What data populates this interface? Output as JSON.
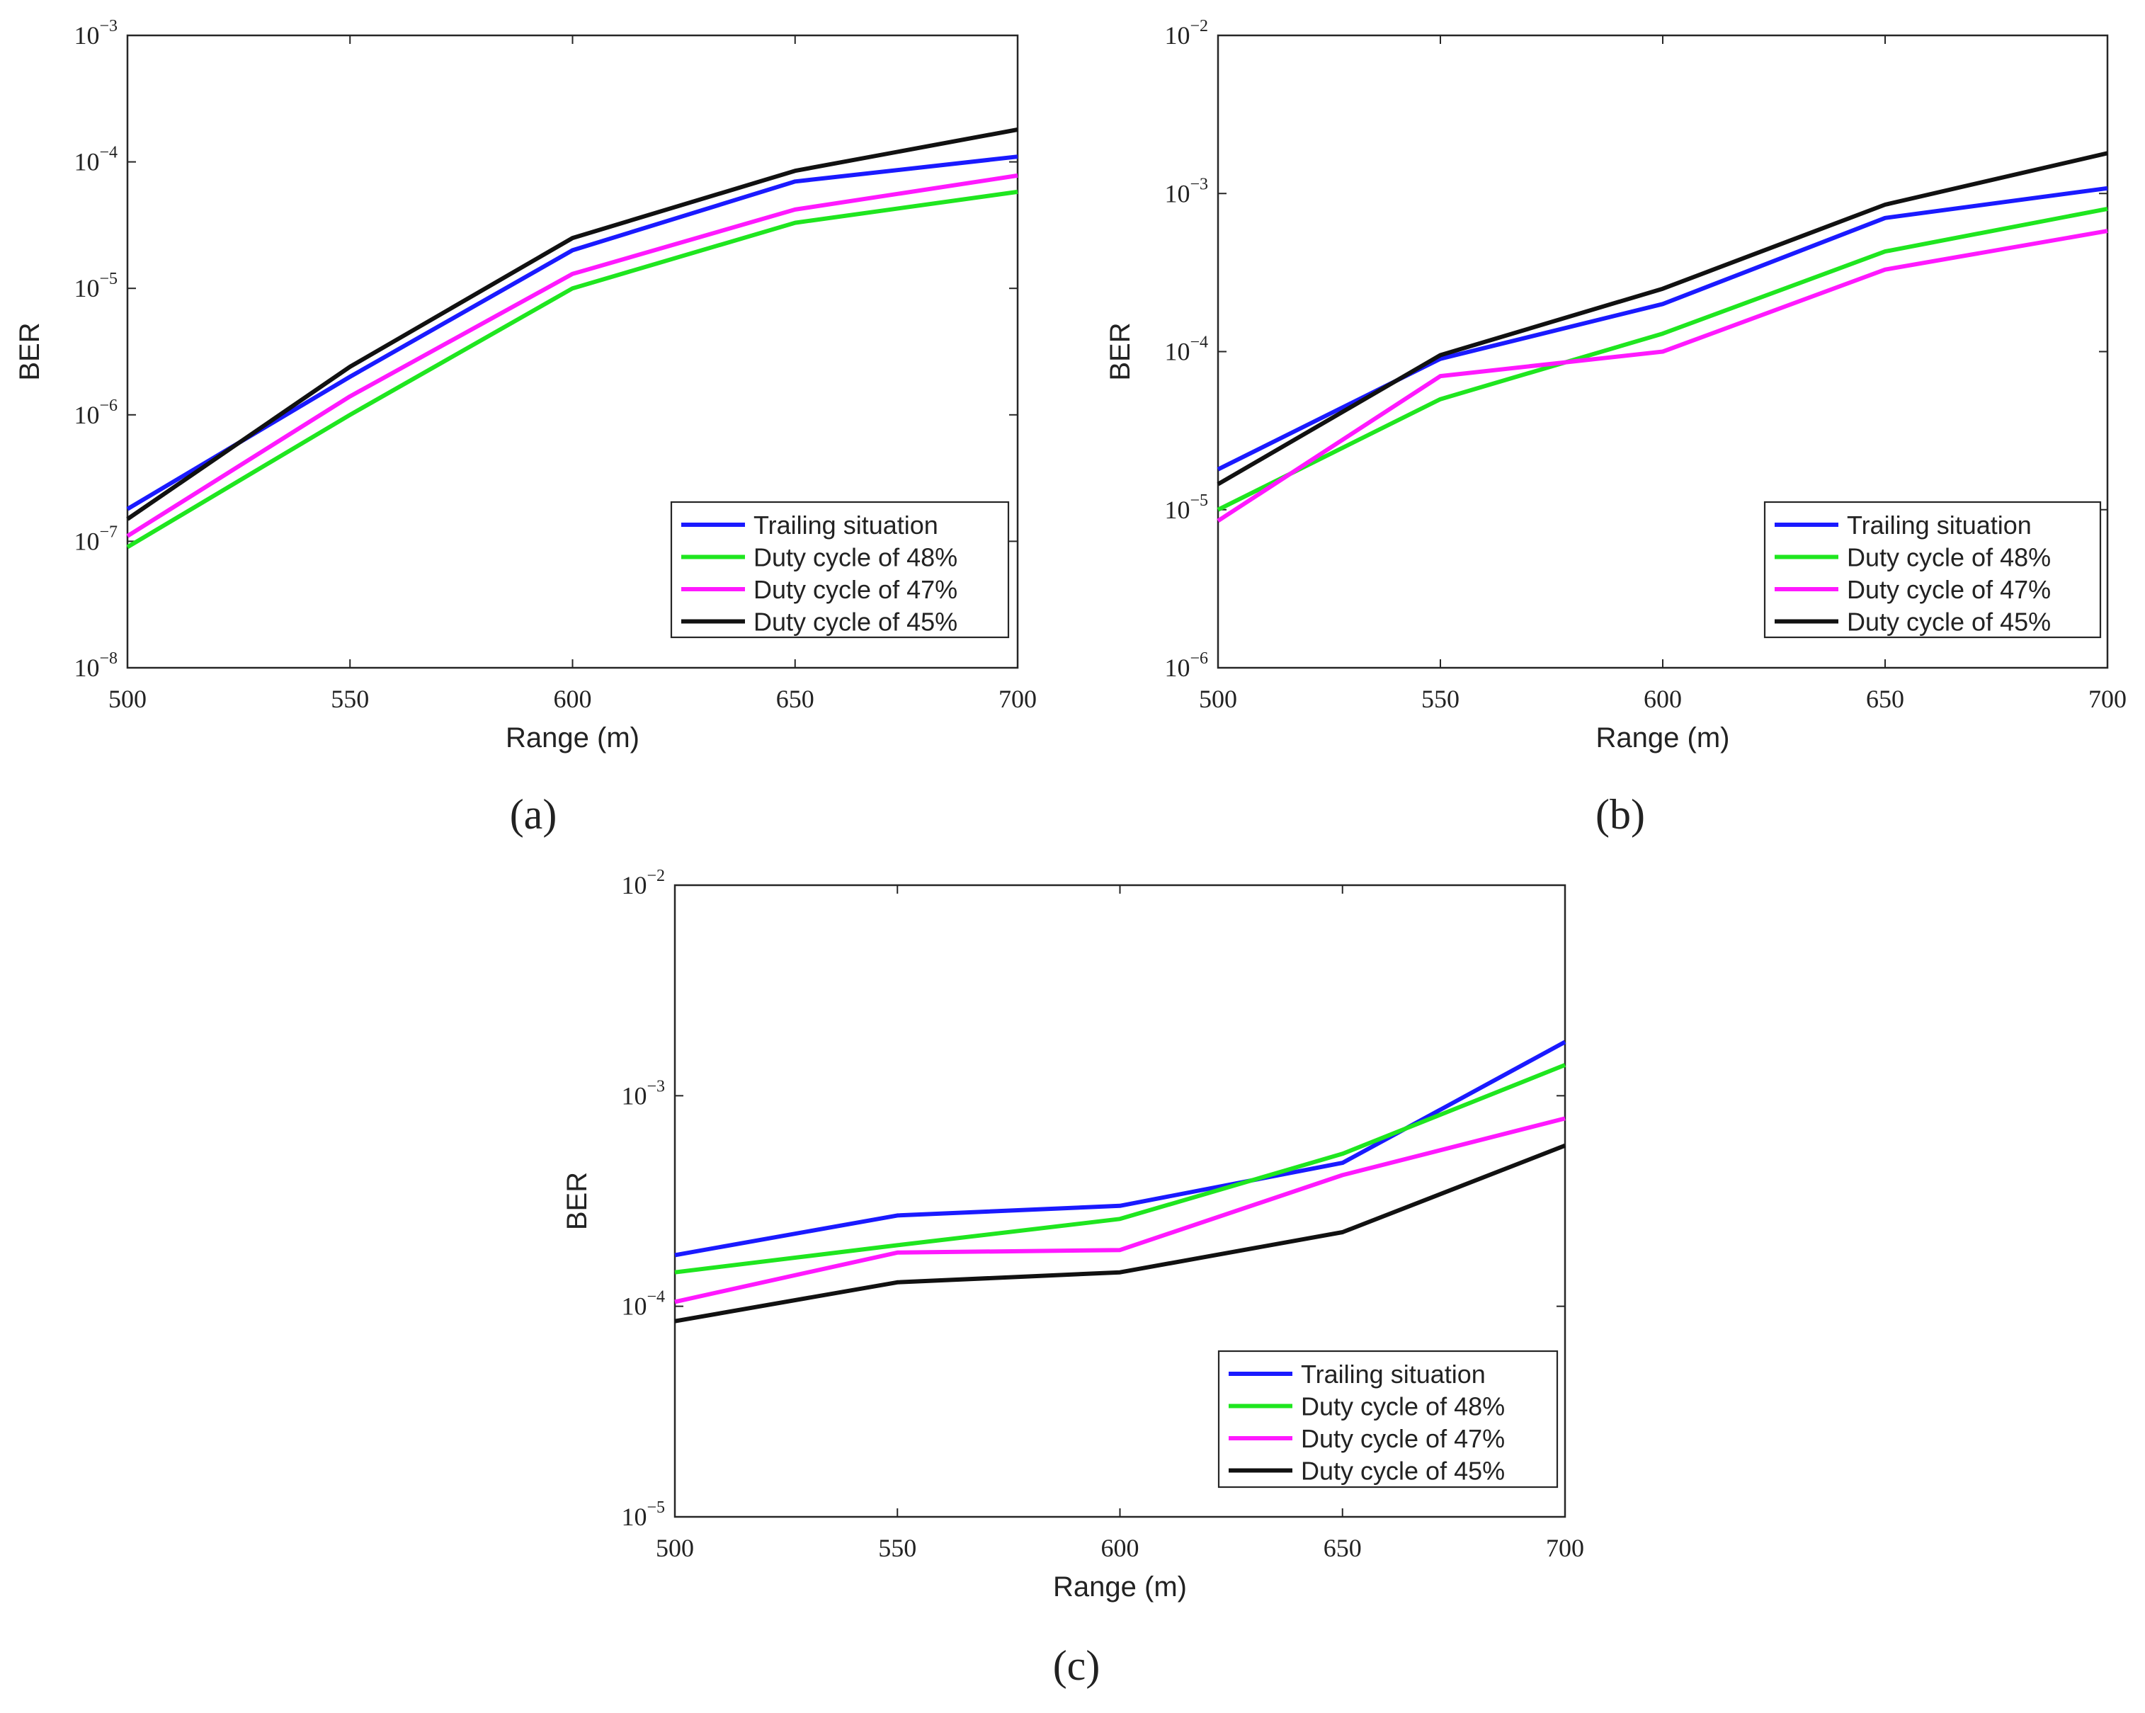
{
  "figure": {
    "series_names": [
      "Trailing situation",
      "Duty cycle of 48%",
      "Duty cycle of 47%",
      "Duty cycle of 45%"
    ],
    "colors": [
      "#1a1aff",
      "#1fe61f",
      "#ff19ff",
      "#111111"
    ]
  },
  "chart_data": [
    {
      "type": "line",
      "caption": "(a)",
      "title": "",
      "xlabel": "Range (m)",
      "ylabel": "BER",
      "yscale": "log",
      "xlim": [
        500,
        700
      ],
      "ylim": [
        1e-08,
        0.001
      ],
      "x": [
        500,
        550,
        600,
        650,
        700
      ],
      "xtick_labels": [
        "500",
        "550",
        "600",
        "650",
        "700"
      ],
      "ytick_exponents": [
        "-8",
        "-7",
        "-6",
        "-5",
        "-4",
        "-3"
      ],
      "legend_position": "bottom-right",
      "series": [
        {
          "name": "Trailing situation",
          "color": "#1a1aff",
          "values": [
            1.8e-07,
            2e-06,
            2e-05,
            7e-05,
            0.00011
          ]
        },
        {
          "name": "Duty cycle of 48%",
          "color": "#1fe61f",
          "values": [
            9e-08,
            1e-06,
            1e-05,
            3.3e-05,
            5.8e-05
          ]
        },
        {
          "name": "Duty cycle of 47%",
          "color": "#ff19ff",
          "values": [
            1.1e-07,
            1.4e-06,
            1.3e-05,
            4.2e-05,
            7.8e-05
          ]
        },
        {
          "name": "Duty cycle of 45%",
          "color": "#111111",
          "values": [
            1.5e-07,
            2.4e-06,
            2.5e-05,
            8.5e-05,
            0.00018
          ]
        }
      ]
    },
    {
      "type": "line",
      "caption": "(b)",
      "title": "",
      "xlabel": "Range (m)",
      "ylabel": "BER",
      "yscale": "log",
      "xlim": [
        500,
        700
      ],
      "ylim": [
        1e-06,
        0.01
      ],
      "x": [
        500,
        550,
        600,
        650,
        700
      ],
      "xtick_labels": [
        "500",
        "550",
        "600",
        "650",
        "700"
      ],
      "ytick_exponents": [
        "-6",
        "-5",
        "-4",
        "-3",
        "-2"
      ],
      "legend_position": "bottom-right",
      "series": [
        {
          "name": "Trailing situation",
          "color": "#1a1aff",
          "values": [
            1.8e-05,
            9e-05,
            0.0002,
            0.0007,
            0.00108
          ]
        },
        {
          "name": "Duty cycle of 48%",
          "color": "#1fe61f",
          "values": [
            1e-05,
            5e-05,
            0.00013,
            0.00043,
            0.0008
          ]
        },
        {
          "name": "Duty cycle of 47%",
          "color": "#ff19ff",
          "values": [
            8.5e-06,
            7e-05,
            0.0001,
            0.00033,
            0.00058
          ]
        },
        {
          "name": "Duty cycle of 45%",
          "color": "#111111",
          "values": [
            1.45e-05,
            9.5e-05,
            0.00025,
            0.00085,
            0.0018
          ]
        }
      ]
    },
    {
      "type": "line",
      "caption": "(c)",
      "title": "",
      "xlabel": "Range (m)",
      "ylabel": "BER",
      "yscale": "log",
      "xlim": [
        500,
        700
      ],
      "ylim": [
        1e-05,
        0.01
      ],
      "x": [
        500,
        550,
        600,
        650,
        700
      ],
      "xtick_labels": [
        "500",
        "550",
        "600",
        "650",
        "700"
      ],
      "ytick_exponents": [
        "-5",
        "-4",
        "-3",
        "-2"
      ],
      "legend_position": "bottom-right",
      "series": [
        {
          "name": "Trailing situation",
          "color": "#1a1aff",
          "values": [
            0.000175,
            0.00027,
            0.0003,
            0.00048,
            0.0018
          ]
        },
        {
          "name": "Duty cycle of 48%",
          "color": "#1fe61f",
          "values": [
            0.000145,
            0.000195,
            0.00026,
            0.00053,
            0.0014
          ]
        },
        {
          "name": "Duty cycle of 47%",
          "color": "#ff19ff",
          "values": [
            0.000105,
            0.00018,
            0.000185,
            0.00042,
            0.00078
          ]
        },
        {
          "name": "Duty cycle of 45%",
          "color": "#111111",
          "values": [
            8.5e-05,
            0.00013,
            0.000145,
            0.000225,
            0.00058
          ]
        }
      ]
    }
  ]
}
